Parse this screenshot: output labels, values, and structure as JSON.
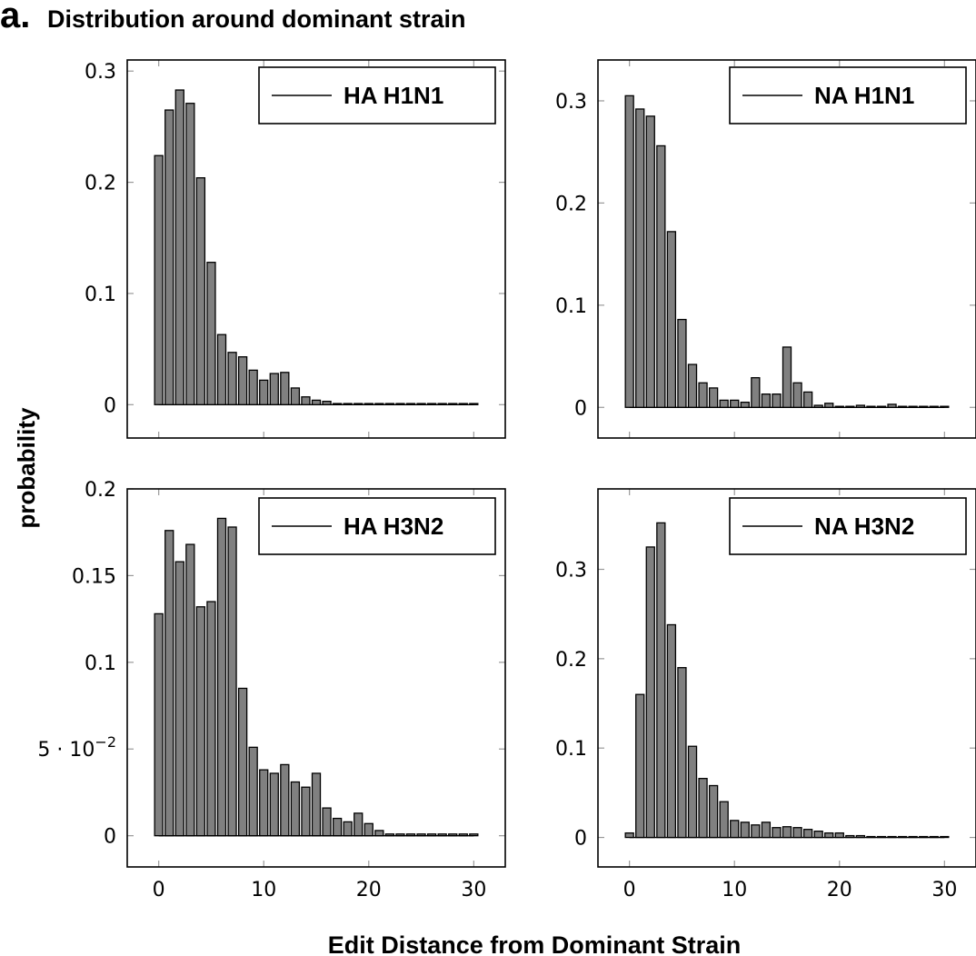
{
  "header": {
    "panel_letter": "a.",
    "title": "Distribution around dominant strain"
  },
  "axes": {
    "ylabel": "probability",
    "xlabel": "Edit Distance from Dominant Strain"
  },
  "colors": {
    "bar_fill": "#808080",
    "bar_stroke": "#000000",
    "grid": "#999999"
  },
  "chart_data": [
    {
      "type": "bar",
      "legend": "HA H1N1",
      "legend_position": "top-right",
      "x": [
        0,
        1,
        2,
        3,
        4,
        5,
        6,
        7,
        8,
        9,
        10,
        11,
        12,
        13,
        14,
        15,
        16,
        17,
        18,
        19,
        20,
        21,
        22,
        23,
        24,
        25,
        26,
        27,
        28,
        29,
        30
      ],
      "values": [
        0.224,
        0.265,
        0.283,
        0.271,
        0.204,
        0.128,
        0.063,
        0.047,
        0.043,
        0.031,
        0.022,
        0.028,
        0.029,
        0.015,
        0.007,
        0.004,
        0.003,
        0.001,
        0.001,
        0.001,
        0.001,
        0.001,
        0.001,
        0.001,
        0.001,
        0.001,
        0.001,
        0.001,
        0.001,
        0.001,
        0.001
      ],
      "xlim": [
        -3,
        33
      ],
      "ylim": [
        -0.03,
        0.31
      ],
      "yticks": [
        0,
        0.1,
        0.2,
        0.3
      ],
      "ytick_labels": [
        "0",
        "0.1",
        "0.2",
        "0.3"
      ],
      "xticks": [
        0,
        10,
        20,
        30
      ],
      "xtick_labels": [
        "0",
        "10",
        "20",
        "30"
      ]
    },
    {
      "type": "bar",
      "legend": "NA H1N1",
      "legend_position": "top-right",
      "x": [
        0,
        1,
        2,
        3,
        4,
        5,
        6,
        7,
        8,
        9,
        10,
        11,
        12,
        13,
        14,
        15,
        16,
        17,
        18,
        19,
        20,
        21,
        22,
        23,
        24,
        25,
        26,
        27,
        28,
        29,
        30
      ],
      "values": [
        0.305,
        0.292,
        0.285,
        0.256,
        0.172,
        0.086,
        0.042,
        0.024,
        0.019,
        0.007,
        0.007,
        0.005,
        0.029,
        0.013,
        0.013,
        0.059,
        0.024,
        0.015,
        0.002,
        0.004,
        0.001,
        0.001,
        0.002,
        0.001,
        0.001,
        0.003,
        0.001,
        0.001,
        0.001,
        0.001,
        0.001
      ],
      "xlim": [
        -3,
        33
      ],
      "ylim": [
        -0.03,
        0.34
      ],
      "yticks": [
        0,
        0.1,
        0.2,
        0.3
      ],
      "ytick_labels": [
        "0",
        "0.1",
        "0.2",
        "0.3"
      ],
      "xticks": [
        0,
        10,
        20,
        30
      ],
      "xtick_labels": [
        "0",
        "10",
        "20",
        "30"
      ]
    },
    {
      "type": "bar",
      "legend": "HA H3N2",
      "legend_position": "top-right",
      "x": [
        0,
        1,
        2,
        3,
        4,
        5,
        6,
        7,
        8,
        9,
        10,
        11,
        12,
        13,
        14,
        15,
        16,
        17,
        18,
        19,
        20,
        21,
        22,
        23,
        24,
        25,
        26,
        27,
        28,
        29,
        30
      ],
      "values": [
        0.128,
        0.176,
        0.158,
        0.168,
        0.132,
        0.135,
        0.183,
        0.178,
        0.085,
        0.051,
        0.038,
        0.036,
        0.041,
        0.031,
        0.028,
        0.036,
        0.016,
        0.01,
        0.008,
        0.013,
        0.007,
        0.003,
        0.001,
        0.001,
        0.001,
        0.001,
        0.001,
        0.001,
        0.001,
        0.001,
        0.001
      ],
      "xlim": [
        -3,
        33
      ],
      "ylim": [
        -0.018,
        0.2
      ],
      "yticks": [
        0,
        0.05,
        0.1,
        0.15,
        0.2
      ],
      "ytick_labels": [
        "0",
        "5 · 10",
        "0.1",
        "0.15",
        "0.2"
      ],
      "ytick_exponent": "−2",
      "xticks": [
        0,
        10,
        20,
        30
      ],
      "xtick_labels": [
        "0",
        "10",
        "20",
        "30"
      ]
    },
    {
      "type": "bar",
      "legend": "NA H3N2",
      "legend_position": "top-right",
      "x": [
        0,
        1,
        2,
        3,
        4,
        5,
        6,
        7,
        8,
        9,
        10,
        11,
        12,
        13,
        14,
        15,
        16,
        17,
        18,
        19,
        20,
        21,
        22,
        23,
        24,
        25,
        26,
        27,
        28,
        29,
        30
      ],
      "values": [
        0.005,
        0.16,
        0.325,
        0.352,
        0.238,
        0.19,
        0.102,
        0.066,
        0.058,
        0.04,
        0.019,
        0.017,
        0.014,
        0.017,
        0.011,
        0.012,
        0.011,
        0.009,
        0.007,
        0.005,
        0.005,
        0.002,
        0.002,
        0.001,
        0.001,
        0.001,
        0.001,
        0.001,
        0.001,
        0.001,
        0.001
      ],
      "xlim": [
        -3,
        33
      ],
      "ylim": [
        -0.033,
        0.39
      ],
      "yticks": [
        0,
        0.1,
        0.2,
        0.3
      ],
      "ytick_labels": [
        "0",
        "0.1",
        "0.2",
        "0.3"
      ],
      "xticks": [
        0,
        10,
        20,
        30
      ],
      "xtick_labels": [
        "0",
        "10",
        "20",
        "30"
      ]
    }
  ]
}
